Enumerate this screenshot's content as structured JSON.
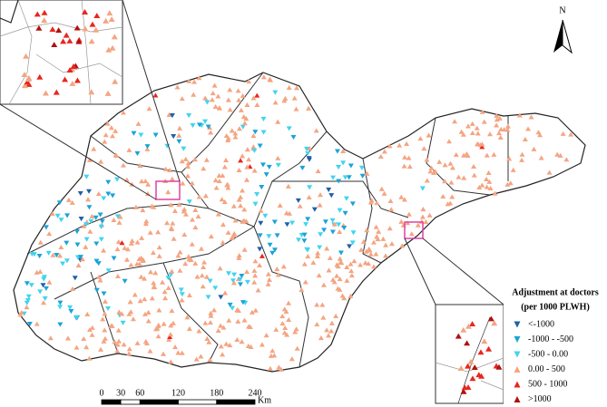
{
  "map": {
    "north_label": "N",
    "legend": {
      "title_lines": [
        "Adjustment at doctors",
        "(per 1000 PLWH)"
      ],
      "items": [
        {
          "label": "<-1000",
          "color": "#1f5fa8"
        },
        {
          "label": "-1000 - -500",
          "color": "#1aa3d6"
        },
        {
          "label": "-500 - 0.00",
          "color": "#40d4ee"
        },
        {
          "label": "0.00 - 500",
          "color": "#f4a582"
        },
        {
          "label": "500 - 1000",
          "color": "#e8261f"
        },
        {
          "label": ">1000",
          "color": "#b01010"
        }
      ]
    },
    "scale_bar": {
      "ticks": [
        0,
        30,
        60,
        120,
        180,
        240
      ],
      "unit": "Km"
    }
  }
}
